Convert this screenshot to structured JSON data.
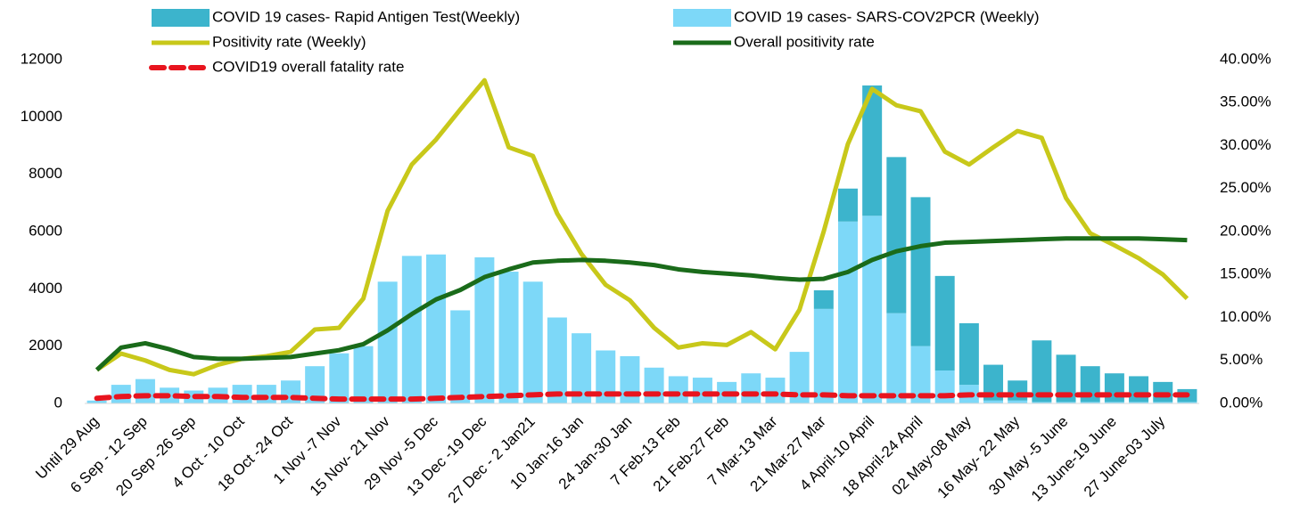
{
  "chart_data": {
    "type": "bar",
    "categories": [
      "Until 29 Aug",
      null,
      "6 Sep - 12 Sep",
      null,
      "20 Sep -26 Sep",
      null,
      "4 Oct - 10 Oct",
      null,
      "18 Oct -24 Oct",
      null,
      "1 Nov -7 Nov",
      null,
      "15 Nov- 21 Nov",
      null,
      "29 Nov -5 Dec",
      null,
      "13 Dec -19 Dec",
      null,
      "27 Dec - 2 Jan21",
      null,
      "10 Jan-16 Jan",
      null,
      "24 Jan-30 Jan",
      null,
      "7 Feb-13 Feb",
      null,
      "21 Feb-27 Feb",
      null,
      "7 Mar-13 Mar",
      null,
      "21 Mar-27 Mar",
      null,
      "4 April-10 April",
      null,
      "18 April-24 April",
      null,
      "02 May-08 May",
      null,
      "16 May- 22 May",
      null,
      "30 May -5 June",
      null,
      "13 June-19 June",
      null,
      "27 June-03 July",
      null
    ],
    "series": [
      {
        "name": "COVID 19 cases- Rapid Antigen Test(Weekly)",
        "type": "bar",
        "stack": true,
        "color": "#3cb4cc",
        "values": [
          0,
          0,
          0,
          0,
          0,
          0,
          0,
          0,
          0,
          0,
          0,
          0,
          0,
          0,
          0,
          0,
          0,
          0,
          0,
          0,
          0,
          0,
          0,
          0,
          0,
          0,
          0,
          0,
          0,
          0,
          650,
          1150,
          4550,
          5450,
          5200,
          3300,
          2150,
          1250,
          700,
          2150,
          1650,
          1250,
          1000,
          900,
          700,
          450
        ]
      },
      {
        "name": "COVID 19 cases- SARS-COV2PCR (Weekly)",
        "type": "bar",
        "stack": true,
        "color": "#7dd8f8",
        "values": [
          100,
          650,
          850,
          550,
          450,
          550,
          650,
          650,
          800,
          1300,
          1750,
          2000,
          4250,
          5150,
          5200,
          3250,
          5100,
          4600,
          4250,
          3000,
          2450,
          1850,
          1650,
          1250,
          950,
          900,
          750,
          1050,
          900,
          1800,
          3300,
          6350,
          6550,
          3150,
          2000,
          1150,
          650,
          100,
          100,
          50,
          50,
          50,
          50,
          50,
          50,
          50
        ]
      },
      {
        "name": "Positivity rate (Weekly)",
        "type": "line",
        "axis": "y2",
        "color": "#c8c81a",
        "values": [
          3.9,
          5.8,
          5.0,
          3.9,
          3.4,
          4.5,
          5.2,
          5.5,
          6.0,
          8.6,
          8.8,
          12.2,
          22.4,
          27.8,
          30.7,
          34.2,
          37.6,
          29.8,
          28.8,
          22.1,
          17.4,
          13.8,
          12.0,
          8.8,
          6.5,
          7.0,
          6.8,
          8.3,
          6.3,
          10.9,
          20.0,
          30.2,
          36.6,
          34.7,
          34.0,
          29.3,
          27.8,
          29.8,
          31.7,
          30.9,
          23.9,
          19.8,
          18.4,
          16.9,
          15.0,
          12.2
        ]
      },
      {
        "name": "Overall positivity rate",
        "type": "line",
        "axis": "y2",
        "color": "#1a6b1a",
        "values": [
          3.9,
          6.5,
          7.0,
          6.3,
          5.4,
          5.2,
          5.2,
          5.3,
          5.4,
          5.8,
          6.2,
          6.9,
          8.5,
          10.4,
          12.1,
          13.2,
          14.7,
          15.6,
          16.4,
          16.6,
          16.7,
          16.6,
          16.4,
          16.1,
          15.6,
          15.3,
          15.1,
          14.9,
          14.6,
          14.4,
          14.5,
          15.3,
          16.7,
          17.7,
          18.3,
          18.7,
          18.8,
          18.9,
          19.0,
          19.1,
          19.2,
          19.2,
          19.2,
          19.2,
          19.1,
          19.0
        ]
      },
      {
        "name": "COVID19 overall fatality rate",
        "type": "line",
        "axis": "y2",
        "color": "#e8141e",
        "line_style": "dashed",
        "values": [
          0.6,
          0.8,
          0.9,
          0.9,
          0.8,
          0.8,
          0.7,
          0.7,
          0.7,
          0.6,
          0.5,
          0.5,
          0.5,
          0.5,
          0.6,
          0.7,
          0.8,
          0.9,
          1.0,
          1.1,
          1.1,
          1.1,
          1.1,
          1.1,
          1.1,
          1.1,
          1.1,
          1.1,
          1.1,
          1.0,
          1.0,
          0.9,
          0.9,
          0.9,
          0.9,
          0.9,
          1.0,
          1.0,
          1.0,
          1.0,
          1.0,
          1.0,
          1.0,
          1.0,
          1.0,
          1.0
        ]
      }
    ],
    "ylim": [
      0,
      12000
    ],
    "yticks": [
      0,
      2000,
      4000,
      6000,
      8000,
      10000,
      12000
    ],
    "y2lim": [
      0,
      40
    ],
    "y2ticks": [
      {
        "value": 0,
        "label": "0.00%"
      },
      {
        "value": 5,
        "label": "5.00%"
      },
      {
        "value": 10,
        "label": "10.00%"
      },
      {
        "value": 15,
        "label": "15.00%"
      },
      {
        "value": 20,
        "label": "20.00%"
      },
      {
        "value": 25,
        "label": "25.00%"
      },
      {
        "value": 30,
        "label": "30.00%"
      },
      {
        "value": 35,
        "label": "35.00%"
      },
      {
        "value": 40,
        "label": "40.00%"
      }
    ],
    "grid": false,
    "legend": "top"
  }
}
